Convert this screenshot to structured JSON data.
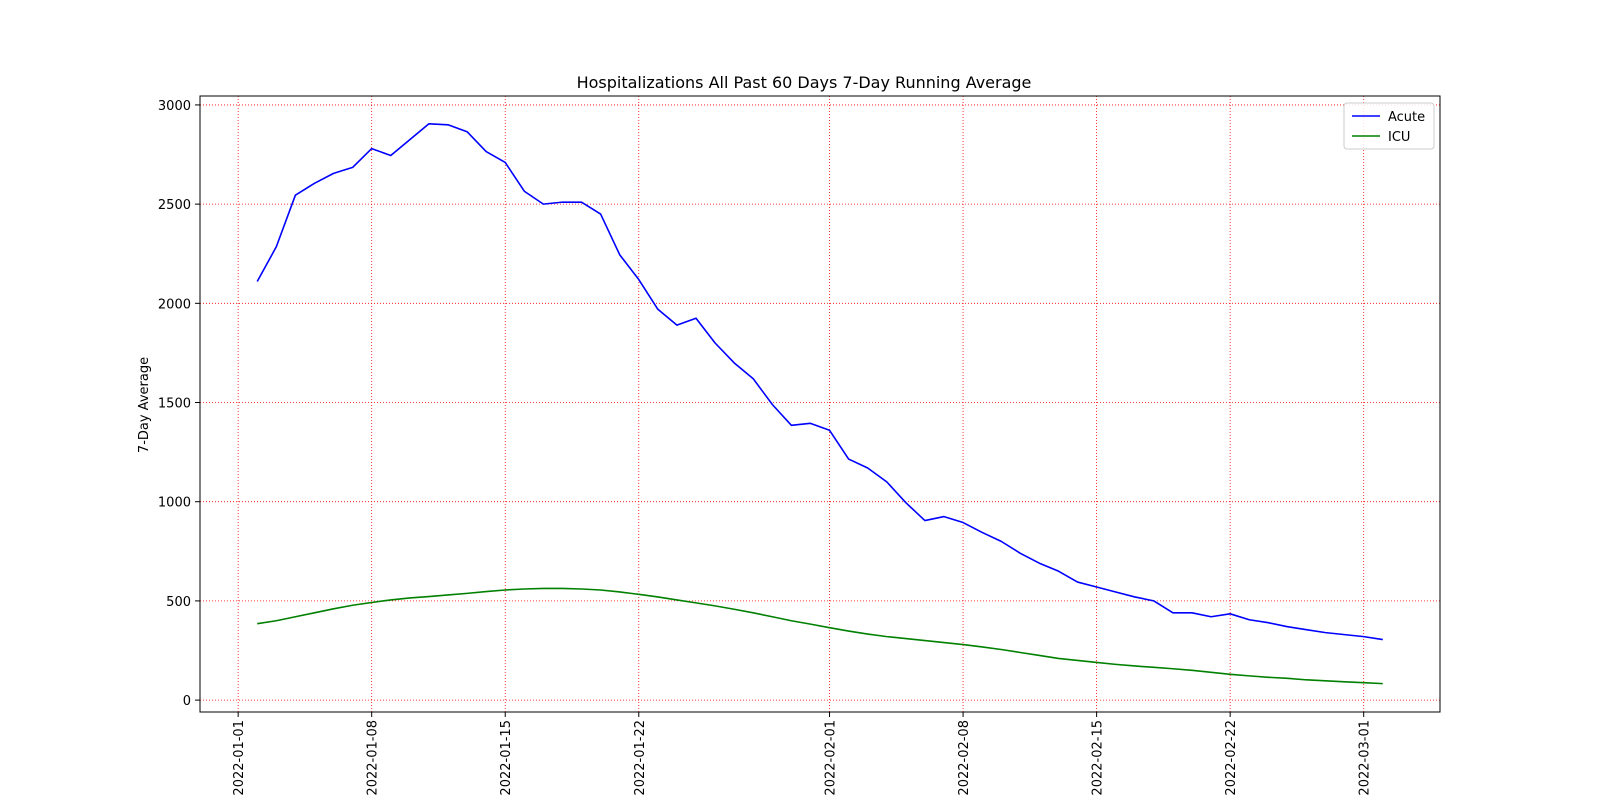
{
  "chart_data": {
    "type": "line",
    "title": "Hospitalizations All Past 60 Days 7-Day Running Average",
    "xlabel": "",
    "ylabel": "7-Day Average",
    "xlim": [
      "2021-12-30",
      "2022-03-05"
    ],
    "ylim": [
      -60,
      3045
    ],
    "x_ticks": [
      "2022-01-01",
      "2022-01-08",
      "2022-01-15",
      "2022-01-22",
      "2022-02-01",
      "2022-02-08",
      "2022-02-15",
      "2022-02-22",
      "2022-03-01"
    ],
    "y_ticks": [
      0,
      500,
      1000,
      1500,
      2000,
      2500,
      3000
    ],
    "grid": true,
    "grid_color": "#ff0000",
    "legend_position": "top-right",
    "x": [
      "2022-01-02",
      "2022-01-03",
      "2022-01-04",
      "2022-01-05",
      "2022-01-06",
      "2022-01-07",
      "2022-01-08",
      "2022-01-09",
      "2022-01-10",
      "2022-01-11",
      "2022-01-12",
      "2022-01-13",
      "2022-01-14",
      "2022-01-15",
      "2022-01-16",
      "2022-01-17",
      "2022-01-18",
      "2022-01-19",
      "2022-01-20",
      "2022-01-21",
      "2022-01-22",
      "2022-01-23",
      "2022-01-24",
      "2022-01-25",
      "2022-01-26",
      "2022-01-27",
      "2022-01-28",
      "2022-01-29",
      "2022-01-30",
      "2022-01-31",
      "2022-02-01",
      "2022-02-02",
      "2022-02-03",
      "2022-02-04",
      "2022-02-05",
      "2022-02-06",
      "2022-02-07",
      "2022-02-08",
      "2022-02-09",
      "2022-02-10",
      "2022-02-11",
      "2022-02-12",
      "2022-02-13",
      "2022-02-14",
      "2022-02-15",
      "2022-02-16",
      "2022-02-17",
      "2022-02-18",
      "2022-02-19",
      "2022-02-20",
      "2022-02-21",
      "2022-02-22",
      "2022-02-23",
      "2022-02-24",
      "2022-02-25",
      "2022-02-26",
      "2022-02-27",
      "2022-02-28",
      "2022-03-01",
      "2022-03-02"
    ],
    "series": [
      {
        "name": "Acute",
        "color": "#0000ff",
        "values": [
          2110,
          2285,
          2545,
          2605,
          2655,
          2685,
          2780,
          2745,
          2825,
          2905,
          2900,
          2865,
          2765,
          2710,
          2565,
          2500,
          2510,
          2510,
          2450,
          2245,
          2120,
          1970,
          1890,
          1925,
          1800,
          1700,
          1620,
          1490,
          1385,
          1395,
          1360,
          1215,
          1170,
          1100,
          995,
          905,
          925,
          895,
          845,
          800,
          740,
          690,
          650,
          595,
          570,
          545,
          520,
          500,
          440,
          440,
          420,
          435,
          405,
          390,
          370,
          355,
          340,
          330,
          320,
          305
        ]
      },
      {
        "name": "ICU",
        "color": "#008000",
        "values": [
          385,
          400,
          420,
          440,
          460,
          478,
          492,
          505,
          515,
          522,
          530,
          538,
          547,
          555,
          560,
          563,
          563,
          560,
          555,
          545,
          533,
          520,
          505,
          490,
          475,
          458,
          440,
          420,
          400,
          383,
          365,
          348,
          333,
          320,
          310,
          300,
          290,
          280,
          268,
          255,
          240,
          225,
          210,
          200,
          190,
          180,
          172,
          165,
          158,
          150,
          140,
          130,
          122,
          115,
          110,
          102,
          97,
          92,
          88,
          83
        ]
      }
    ]
  }
}
